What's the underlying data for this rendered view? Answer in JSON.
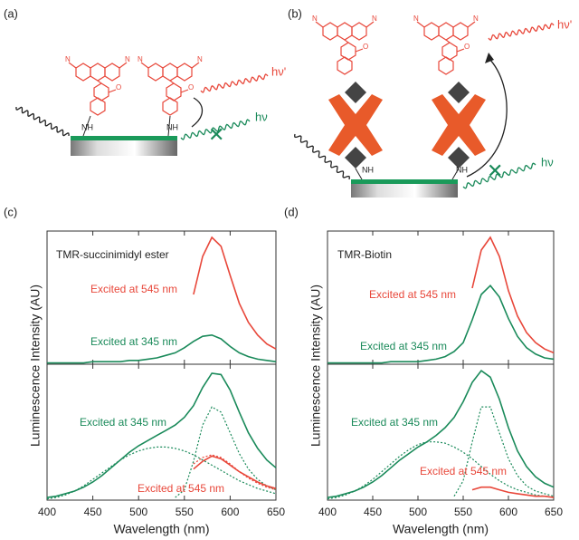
{
  "schematic": {
    "a": {
      "label": "(a)",
      "nh": [
        "NH",
        "NH"
      ],
      "emission": "hν'",
      "excitation": "hν"
    },
    "b": {
      "label": "(b)",
      "nh": [
        "NH",
        "NH"
      ],
      "emission": "hν'",
      "excitation": "hν"
    }
  },
  "chart_data": [
    {
      "type": "line",
      "panel": "(c)",
      "ylabel": "Luminescence Intensity (AU)",
      "x": [
        400,
        410,
        420,
        430,
        440,
        450,
        460,
        470,
        480,
        490,
        500,
        510,
        520,
        530,
        540,
        550,
        560,
        570,
        580,
        590,
        600,
        610,
        620,
        630,
        640,
        650
      ],
      "xlim": [
        400,
        650
      ],
      "xticks": [
        400,
        450,
        500,
        550,
        600,
        650
      ],
      "ylim": [
        0,
        1.05
      ],
      "series": [
        {
          "color": "#e8473a",
          "dashed": false,
          "values": [
            null,
            null,
            null,
            null,
            null,
            null,
            null,
            null,
            null,
            null,
            null,
            null,
            null,
            null,
            null,
            null,
            0.55,
            0.85,
            1.0,
            0.93,
            0.7,
            0.48,
            0.33,
            0.23,
            0.16,
            0.12
          ]
        },
        {
          "color": "#1a8a5a",
          "dashed": false,
          "values": [
            0.01,
            0.01,
            0.01,
            0.01,
            0.01,
            0.02,
            0.02,
            0.02,
            0.02,
            0.03,
            0.03,
            0.04,
            0.05,
            0.07,
            0.09,
            0.13,
            0.18,
            0.22,
            0.23,
            0.2,
            0.14,
            0.09,
            0.06,
            0.04,
            0.03,
            0.02
          ]
        }
      ],
      "annotations": [
        {
          "text": "TMR-succinimidyl ester",
          "color": "#222222"
        },
        {
          "text": "Excited at 545 nm",
          "color": "#e8473a"
        },
        {
          "text": "Excited at 345 nm",
          "color": "#1a8a5a"
        }
      ]
    },
    {
      "type": "line",
      "xlabel": "Wavelength (nm)",
      "x": [
        400,
        410,
        420,
        430,
        440,
        450,
        460,
        470,
        480,
        490,
        500,
        510,
        520,
        530,
        540,
        550,
        560,
        570,
        580,
        590,
        600,
        610,
        620,
        630,
        640,
        650
      ],
      "xlim": [
        400,
        650
      ],
      "xticks": [
        400,
        450,
        500,
        550,
        600,
        650
      ],
      "ylim": [
        0,
        1.05
      ],
      "series": [
        {
          "color": "#1a8a5a",
          "dashed": false,
          "values": [
            0.02,
            0.03,
            0.05,
            0.07,
            0.1,
            0.14,
            0.19,
            0.25,
            0.31,
            0.37,
            0.42,
            0.46,
            0.5,
            0.54,
            0.58,
            0.64,
            0.73,
            0.87,
            0.98,
            0.97,
            0.85,
            0.68,
            0.52,
            0.4,
            0.31,
            0.25
          ]
        },
        {
          "color": "#1a8a5a",
          "dashed": true,
          "values": [
            0.01,
            0.02,
            0.04,
            0.07,
            0.11,
            0.16,
            0.21,
            0.26,
            0.31,
            0.35,
            0.38,
            0.4,
            0.41,
            0.41,
            0.4,
            0.38,
            0.35,
            0.31,
            0.27,
            0.23,
            0.19,
            0.15,
            0.12,
            0.09,
            0.07,
            0.05
          ]
        },
        {
          "color": "#1a8a5a",
          "dashed": true,
          "values": [
            null,
            null,
            null,
            null,
            null,
            null,
            null,
            null,
            null,
            null,
            null,
            null,
            null,
            null,
            0.02,
            0.08,
            0.3,
            0.58,
            0.72,
            0.68,
            0.52,
            0.36,
            0.24,
            0.16,
            0.11,
            0.08
          ]
        },
        {
          "color": "#e8473a",
          "dashed": false,
          "values": [
            null,
            null,
            null,
            null,
            null,
            null,
            null,
            null,
            null,
            null,
            null,
            null,
            null,
            null,
            null,
            null,
            0.24,
            0.3,
            0.34,
            0.32,
            0.27,
            0.22,
            0.18,
            0.14,
            0.11,
            0.09
          ]
        },
        {
          "color": "#e8473a",
          "dashed": true,
          "values": [
            null,
            null,
            null,
            null,
            null,
            null,
            null,
            null,
            null,
            null,
            null,
            null,
            null,
            null,
            null,
            null,
            0.28,
            0.33,
            0.35,
            0.33,
            0.28,
            0.22,
            0.17,
            0.13,
            0.1,
            0.08
          ]
        }
      ],
      "annotations": [
        {
          "text": "Excited at 345 nm",
          "color": "#1a8a5a"
        },
        {
          "text": "Excited at 545 nm",
          "color": "#e8473a"
        }
      ]
    },
    {
      "type": "line",
      "panel": "(d)",
      "ylabel": "Luminescence Intensity (AU)",
      "x": [
        400,
        410,
        420,
        430,
        440,
        450,
        460,
        470,
        480,
        490,
        500,
        510,
        520,
        530,
        540,
        550,
        560,
        570,
        580,
        590,
        600,
        610,
        620,
        630,
        640,
        650
      ],
      "xlim": [
        400,
        650
      ],
      "xticks": [
        400,
        450,
        500,
        550,
        600,
        650
      ],
      "ylim": [
        0,
        1.05
      ],
      "series": [
        {
          "color": "#e8473a",
          "dashed": false,
          "values": [
            null,
            null,
            null,
            null,
            null,
            null,
            null,
            null,
            null,
            null,
            null,
            null,
            null,
            null,
            null,
            null,
            0.6,
            0.9,
            1.0,
            0.85,
            0.58,
            0.38,
            0.25,
            0.17,
            0.12,
            0.09
          ]
        },
        {
          "color": "#1a8a5a",
          "dashed": false,
          "values": [
            0.01,
            0.01,
            0.01,
            0.01,
            0.01,
            0.01,
            0.01,
            0.02,
            0.02,
            0.02,
            0.02,
            0.03,
            0.04,
            0.06,
            0.1,
            0.17,
            0.35,
            0.55,
            0.62,
            0.53,
            0.36,
            0.22,
            0.13,
            0.08,
            0.05,
            0.04
          ]
        }
      ],
      "annotations": [
        {
          "text": "TMR-Biotin",
          "color": "#222222"
        },
        {
          "text": "Excited at 545 nm",
          "color": "#e8473a"
        },
        {
          "text": "Excited at 345 nm",
          "color": "#1a8a5a"
        }
      ]
    },
    {
      "type": "line",
      "xlabel": "Wavelength (nm)",
      "x": [
        400,
        410,
        420,
        430,
        440,
        450,
        460,
        470,
        480,
        490,
        500,
        510,
        520,
        530,
        540,
        550,
        560,
        570,
        580,
        590,
        600,
        610,
        620,
        630,
        640,
        650
      ],
      "xlim": [
        400,
        650
      ],
      "xticks": [
        400,
        450,
        500,
        550,
        600,
        650
      ],
      "ylim": [
        0,
        1.05
      ],
      "series": [
        {
          "color": "#1a8a5a",
          "dashed": false,
          "values": [
            0.02,
            0.03,
            0.05,
            0.07,
            0.1,
            0.14,
            0.19,
            0.25,
            0.31,
            0.36,
            0.41,
            0.45,
            0.5,
            0.56,
            0.64,
            0.76,
            0.91,
            1.0,
            0.95,
            0.78,
            0.56,
            0.38,
            0.26,
            0.18,
            0.13,
            0.1
          ]
        },
        {
          "color": "#1a8a5a",
          "dashed": true,
          "values": [
            0.01,
            0.02,
            0.04,
            0.07,
            0.11,
            0.16,
            0.22,
            0.28,
            0.34,
            0.39,
            0.43,
            0.45,
            0.45,
            0.44,
            0.41,
            0.37,
            0.32,
            0.26,
            0.2,
            0.15,
            0.11,
            0.08,
            0.06,
            0.04,
            0.03,
            0.02
          ]
        },
        {
          "color": "#1a8a5a",
          "dashed": true,
          "values": [
            null,
            null,
            null,
            null,
            null,
            null,
            null,
            null,
            null,
            null,
            null,
            null,
            null,
            null,
            0.03,
            0.15,
            0.45,
            0.72,
            0.72,
            0.52,
            0.32,
            0.19,
            0.11,
            0.07,
            0.05,
            0.03
          ]
        },
        {
          "color": "#e8473a",
          "dashed": false,
          "values": [
            null,
            null,
            null,
            null,
            null,
            null,
            null,
            null,
            null,
            null,
            null,
            null,
            null,
            null,
            null,
            null,
            0.08,
            0.1,
            0.1,
            0.08,
            0.06,
            0.05,
            0.04,
            0.03,
            0.03,
            0.02
          ]
        }
      ],
      "annotations": [
        {
          "text": "Excited at 345 nm",
          "color": "#1a8a5a"
        },
        {
          "text": "Excited at 545 nm",
          "color": "#e8473a"
        }
      ]
    }
  ]
}
